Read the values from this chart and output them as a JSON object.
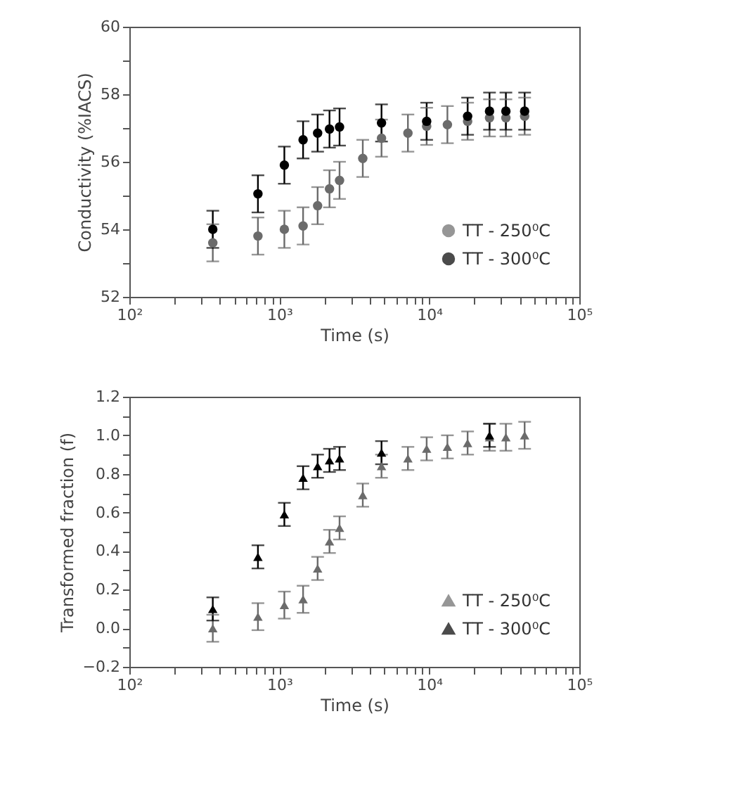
{
  "chart_data": [
    {
      "type": "scatter",
      "xlabel": "Time (s)",
      "ylabel": "Conductivity (%IACS)",
      "log": "x",
      "marker": "circle",
      "legend": "bottom right",
      "grid": false,
      "xlim": [
        100,
        100000
      ],
      "xticks": [
        {
          "value": 100,
          "label": "10²"
        },
        {
          "value": 200,
          "label": null
        },
        {
          "value": 300,
          "label": null
        },
        {
          "value": 400,
          "label": null
        },
        {
          "value": 500,
          "label": null
        },
        {
          "value": 600,
          "label": null
        },
        {
          "value": 700,
          "label": null
        },
        {
          "value": 800,
          "label": null
        },
        {
          "value": 900,
          "label": null
        },
        {
          "value": 1000,
          "label": "10³"
        },
        {
          "value": 2000,
          "label": null
        },
        {
          "value": 3000,
          "label": null
        },
        {
          "value": 4000,
          "label": null
        },
        {
          "value": 5000,
          "label": null
        },
        {
          "value": 6000,
          "label": null
        },
        {
          "value": 7000,
          "label": null
        },
        {
          "value": 8000,
          "label": null
        },
        {
          "value": 9000,
          "label": null
        },
        {
          "value": 10000,
          "label": "10⁴"
        },
        {
          "value": 20000,
          "label": null
        },
        {
          "value": 30000,
          "label": null
        },
        {
          "value": 40000,
          "label": null
        },
        {
          "value": 50000,
          "label": null
        },
        {
          "value": 60000,
          "label": null
        },
        {
          "value": 70000,
          "label": null
        },
        {
          "value": 80000,
          "label": null
        },
        {
          "value": 90000,
          "label": null
        },
        {
          "value": 100000,
          "label": "10⁵"
        }
      ],
      "ylim": [
        52,
        60
      ],
      "yticks": [
        52,
        {
          "value": 53,
          "label": null
        },
        54,
        {
          "value": 55,
          "label": null
        },
        56,
        {
          "value": 57,
          "label": null
        },
        58,
        {
          "value": 59,
          "label": null
        },
        60
      ],
      "series": [
        {
          "name": "TT - 250⁰C",
          "color": "#6b6b6b",
          "x": [
            360,
            720,
            1080,
            1440,
            1800,
            2160,
            2520,
            3600,
            4800,
            7200,
            9600,
            13200,
            18000,
            25200,
            32400,
            43200
          ],
          "values": [
            53.6,
            53.8,
            54.0,
            54.1,
            54.7,
            55.2,
            55.45,
            56.1,
            56.7,
            56.85,
            57.05,
            57.1,
            57.2,
            57.3,
            57.3,
            57.35
          ],
          "errors": [
            0.55,
            0.55,
            0.55,
            0.55,
            0.55,
            0.55,
            0.55,
            0.55,
            0.55,
            0.55,
            0.55,
            0.55,
            0.55,
            0.55,
            0.55,
            0.55
          ]
        },
        {
          "name": "TT - 300⁰C",
          "color": "#000000",
          "x": [
            360,
            720,
            1080,
            1440,
            1800,
            2160,
            2520,
            4800,
            9600,
            18000,
            25200,
            32400,
            43200
          ],
          "values": [
            54.0,
            55.05,
            55.9,
            56.65,
            56.85,
            56.97,
            57.03,
            57.15,
            57.2,
            57.35,
            57.5,
            57.5,
            57.5
          ],
          "errors": [
            0.55,
            0.55,
            0.55,
            0.55,
            0.55,
            0.55,
            0.55,
            0.55,
            0.55,
            0.55,
            0.55,
            0.55,
            0.55
          ]
        }
      ]
    },
    {
      "type": "scatter",
      "xlabel": "Time (s)",
      "ylabel": "Transformed fraction (f)",
      "log": "x",
      "marker": "triangle",
      "legend": "bottom right",
      "grid": false,
      "xlim": [
        100,
        100000
      ],
      "xticks": [
        {
          "value": 100,
          "label": "10²"
        },
        {
          "value": 200,
          "label": null
        },
        {
          "value": 300,
          "label": null
        },
        {
          "value": 400,
          "label": null
        },
        {
          "value": 500,
          "label": null
        },
        {
          "value": 600,
          "label": null
        },
        {
          "value": 700,
          "label": null
        },
        {
          "value": 800,
          "label": null
        },
        {
          "value": 900,
          "label": null
        },
        {
          "value": 1000,
          "label": "10³"
        },
        {
          "value": 2000,
          "label": null
        },
        {
          "value": 3000,
          "label": null
        },
        {
          "value": 4000,
          "label": null
        },
        {
          "value": 5000,
          "label": null
        },
        {
          "value": 6000,
          "label": null
        },
        {
          "value": 7000,
          "label": null
        },
        {
          "value": 8000,
          "label": null
        },
        {
          "value": 9000,
          "label": null
        },
        {
          "value": 10000,
          "label": "10⁴"
        },
        {
          "value": 20000,
          "label": null
        },
        {
          "value": 30000,
          "label": null
        },
        {
          "value": 40000,
          "label": null
        },
        {
          "value": 50000,
          "label": null
        },
        {
          "value": 60000,
          "label": null
        },
        {
          "value": 70000,
          "label": null
        },
        {
          "value": 80000,
          "label": null
        },
        {
          "value": 90000,
          "label": null
        },
        {
          "value": 100000,
          "label": "10⁵"
        }
      ],
      "ylim": [
        -0.2,
        1.2
      ],
      "yticks": [
        -0.2,
        {
          "value": -0.1,
          "label": null
        },
        {
          "value": 0,
          "label": "0.0"
        },
        {
          "value": 0.1,
          "label": null
        },
        0.2,
        {
          "value": 0.3,
          "label": null
        },
        0.4,
        {
          "value": 0.5,
          "label": null
        },
        0.6,
        {
          "value": 0.7,
          "label": null
        },
        0.8,
        {
          "value": 0.9,
          "label": null
        },
        {
          "value": 1,
          "label": "1.0"
        },
        {
          "value": 1.1,
          "label": null
        },
        1.2
      ],
      "series": [
        {
          "name": "TT - 250⁰C",
          "color": "#6b6b6b",
          "x": [
            360,
            720,
            1080,
            1440,
            1800,
            2160,
            2520,
            3600,
            4800,
            7200,
            9600,
            13200,
            18000,
            25200,
            32400,
            43200
          ],
          "values": [
            0.0,
            0.06,
            0.12,
            0.15,
            0.31,
            0.45,
            0.52,
            0.69,
            0.84,
            0.88,
            0.93,
            0.94,
            0.96,
            0.99,
            0.99,
            1.0
          ],
          "errors": [
            0.07,
            0.07,
            0.07,
            0.07,
            0.06,
            0.06,
            0.06,
            0.06,
            0.06,
            0.06,
            0.06,
            0.06,
            0.06,
            0.07,
            0.07,
            0.07
          ]
        },
        {
          "name": "TT - 300⁰C",
          "color": "#000000",
          "x": [
            360,
            720,
            1080,
            1440,
            1800,
            2160,
            2520,
            4800,
            25200
          ],
          "values": [
            0.1,
            0.37,
            0.59,
            0.78,
            0.84,
            0.87,
            0.88,
            0.91,
            1.0
          ],
          "errors": [
            0.06,
            0.06,
            0.06,
            0.06,
            0.06,
            0.06,
            0.06,
            0.06,
            0.06
          ]
        }
      ]
    }
  ]
}
